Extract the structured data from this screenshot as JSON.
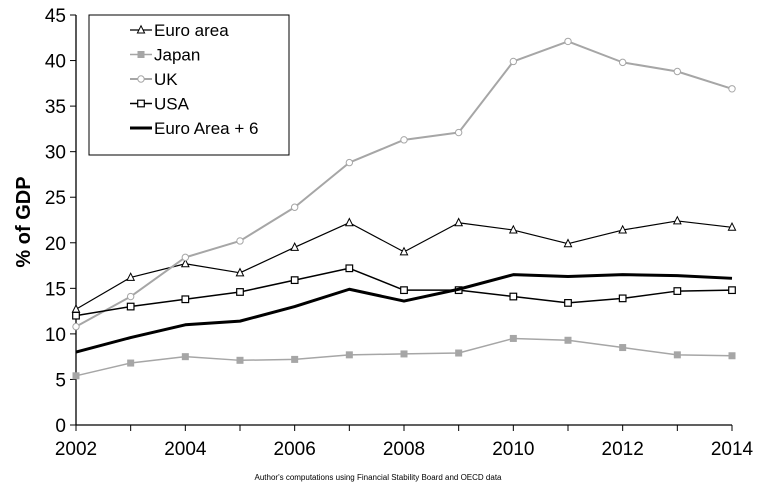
{
  "chart_data": {
    "type": "line",
    "x": [
      2002,
      2003,
      2004,
      2005,
      2006,
      2007,
      2008,
      2009,
      2010,
      2011,
      2012,
      2013,
      2014
    ],
    "xticks": [
      2002,
      2004,
      2006,
      2008,
      2010,
      2012,
      2014
    ],
    "yticks": [
      0,
      5,
      10,
      15,
      20,
      25,
      30,
      35,
      40,
      45
    ],
    "ylim": [
      0,
      45
    ],
    "xlim": [
      2002,
      2014
    ],
    "ylabel": "% of GDP",
    "source_note": "Author's computations using Financial Stability Board and OECD data",
    "legend_position": "top-left",
    "grid": false,
    "series": [
      {
        "name": "Euro area",
        "color": "#000000",
        "marker": "triangle",
        "width": 1.2,
        "values": [
          12.7,
          16.2,
          17.7,
          16.7,
          19.5,
          22.2,
          19.0,
          22.2,
          21.4,
          19.9,
          21.4,
          22.4,
          21.7
        ]
      },
      {
        "name": "Japan",
        "color": "#a6a6a6",
        "marker": "square-filled",
        "width": 1.5,
        "values": [
          5.4,
          6.8,
          7.5,
          7.1,
          7.2,
          7.7,
          7.8,
          7.9,
          9.5,
          9.3,
          8.5,
          7.7,
          7.6
        ]
      },
      {
        "name": "UK",
        "color": "#a6a6a6",
        "marker": "circle",
        "width": 2,
        "values": [
          10.8,
          14.1,
          18.4,
          20.2,
          23.9,
          28.8,
          31.3,
          32.1,
          39.9,
          42.1,
          39.8,
          38.8,
          36.9
        ]
      },
      {
        "name": "USA",
        "color": "#000000",
        "marker": "square",
        "width": 1.5,
        "values": [
          12.0,
          13.0,
          13.8,
          14.6,
          15.9,
          17.2,
          14.8,
          14.8,
          14.1,
          13.4,
          13.9,
          14.7,
          14.8
        ]
      },
      {
        "name": "Euro Area + 6",
        "color": "#000000",
        "marker": "none",
        "width": 3,
        "values": [
          8.0,
          9.6,
          11.0,
          11.4,
          13.0,
          14.9,
          13.6,
          14.9,
          16.5,
          16.3,
          16.5,
          16.4,
          16.1
        ]
      }
    ]
  }
}
